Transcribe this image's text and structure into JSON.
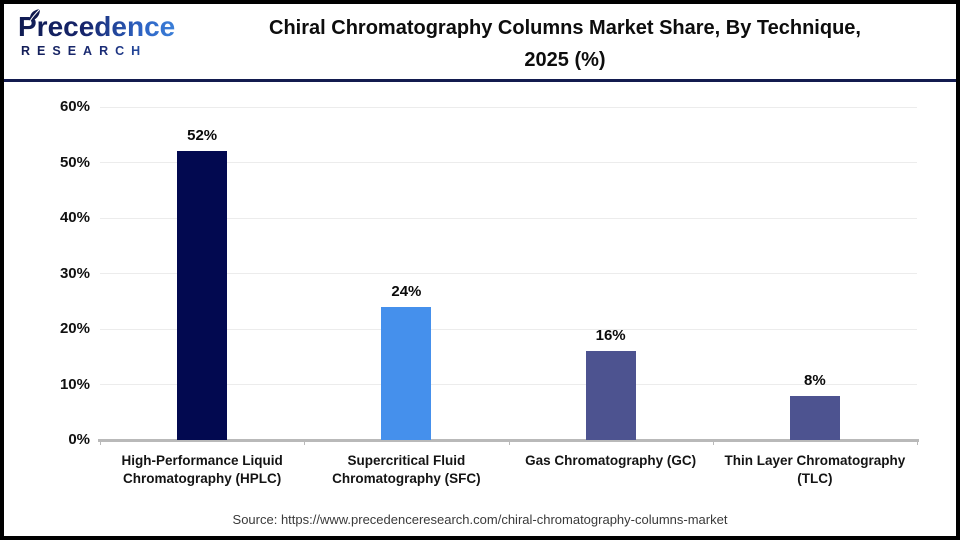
{
  "header": {
    "title": "Chiral Chromatography Columns Market Share, By Technique, 2025 (%)",
    "logo": {
      "wordmark": "Precedence",
      "subtext": "RESEARCH"
    }
  },
  "chart_data": {
    "type": "bar",
    "title": "Chiral Chromatography Columns Market Share, By Technique, 2025 (%)",
    "categories": [
      "High-Performance Liquid Chromatography (HPLC)",
      "Supercritical Fluid Chromatography (SFC)",
      "Gas Chromatography (GC)",
      "Thin Layer Chromatography (TLC)"
    ],
    "values": [
      52,
      24,
      16,
      8
    ],
    "value_labels": [
      "52%",
      "24%",
      "16%",
      "8%"
    ],
    "bar_colors": [
      "#020950",
      "#4590ec",
      "#4d5390",
      "#4d5390"
    ],
    "xlabel": "",
    "ylabel": "",
    "ylim": [
      0,
      60
    ],
    "ytick_interval": 10,
    "ytick_labels": [
      "0%",
      "10%",
      "20%",
      "30%",
      "40%",
      "50%",
      "60%"
    ],
    "grid": true,
    "legend": false
  },
  "footer": {
    "source": "Source: https://www.precedenceresearch.com/chiral-chromatography-columns-market"
  },
  "colors": {
    "bar_primary": "#020950",
    "bar_secondary": "#4590ec",
    "bar_tertiary": "#4d5390",
    "header_rule": "#131b4f",
    "gridline": "#ececec",
    "axis_line": "#b9b9b9"
  }
}
